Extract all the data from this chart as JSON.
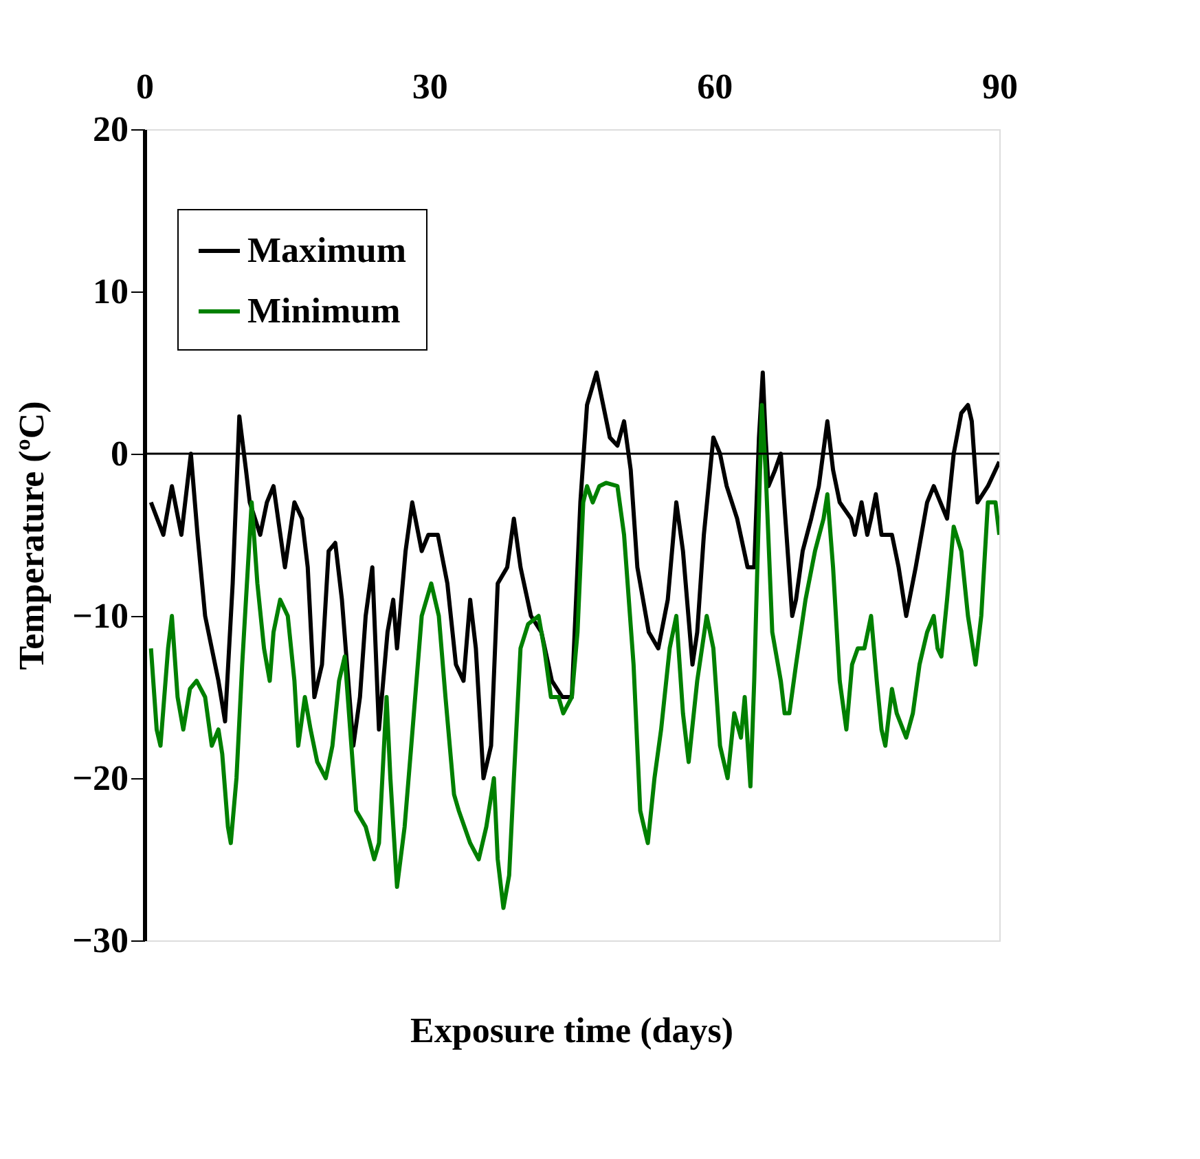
{
  "chart_data": {
    "type": "line",
    "xlabel": "Exposure time (days)",
    "ylabel": "Temperature (ºC)",
    "xlim": [
      0,
      90
    ],
    "xticks": [
      0,
      30,
      60,
      90
    ],
    "ylim": [
      -30,
      20
    ],
    "yticks": [
      -30,
      -20,
      -10,
      0,
      10,
      20
    ],
    "grid": false,
    "legend": "top left",
    "marker": "none",
    "line_style": "solid",
    "ref_lines": [
      {
        "axis": "y",
        "value": 0,
        "color": "#000000"
      }
    ],
    "series": [
      {
        "name": "Maximum",
        "color": "#000000",
        "x": [
          0.7,
          2.0,
          2.9,
          3.9,
          4.9,
          5.6,
          6.4,
          7.8,
          8.5,
          9.3,
          10.0,
          10.7,
          11.1,
          12.2,
          12.9,
          13.6,
          14.8,
          15.8,
          16.6,
          17.2,
          17.9,
          18.7,
          19.4,
          20.1,
          20.8,
          22.0,
          22.7,
          23.3,
          24.0,
          24.7,
          25.6,
          26.2,
          26.6,
          27.5,
          28.2,
          29.2,
          29.9,
          30.9,
          31.9,
          32.8,
          33.6,
          34.3,
          34.9,
          35.7,
          36.5,
          37.2,
          38.2,
          38.9,
          39.6,
          40.7,
          41.8,
          42.9,
          44.0,
          45.0,
          45.9,
          46.6,
          47.6,
          48.3,
          49.0,
          49.8,
          50.5,
          51.2,
          51.9,
          53.1,
          54.1,
          55.1,
          56.0,
          56.7,
          57.7,
          58.2,
          58.9,
          59.9,
          60.6,
          61.3,
          62.4,
          63.5,
          64.2,
          64.7,
          65.1,
          65.4,
          65.7,
          66.4,
          67.0,
          67.6,
          68.2,
          68.6,
          69.3,
          70.2,
          71.0,
          71.9,
          72.5,
          73.2,
          74.4,
          74.8,
          75.5,
          76.1,
          76.5,
          77.0,
          77.6,
          78.0,
          78.7,
          79.4,
          80.2,
          81.2,
          82.4,
          83.1,
          83.8,
          84.5,
          85.2,
          86.0,
          86.7,
          87.1,
          87.7,
          88.8,
          90.0
        ],
        "values": [
          -3,
          -5,
          -2,
          -5,
          0,
          -5,
          -10,
          -14,
          -16.5,
          -8,
          2.3,
          -1,
          -3,
          -5,
          -3,
          -2,
          -7,
          -3,
          -4,
          -7,
          -15,
          -13,
          -6,
          -5.5,
          -9,
          -18,
          -15,
          -10,
          -7,
          -17,
          -11,
          -9,
          -12,
          -6,
          -3,
          -6,
          -5,
          -5,
          -8,
          -13,
          -14,
          -9,
          -12,
          -20,
          -18,
          -8,
          -7,
          -4,
          -7,
          -10,
          -11,
          -14,
          -15,
          -15,
          -3,
          3,
          5,
          3,
          1,
          0.5,
          2,
          -1,
          -7,
          -11,
          -12,
          -9,
          -3,
          -6,
          -13,
          -11,
          -5,
          1,
          0,
          -2,
          -4,
          -7,
          -7,
          1,
          5,
          1,
          -2,
          -1,
          0,
          -5,
          -10,
          -9,
          -6,
          -4,
          -2,
          2,
          -1,
          -3,
          -4,
          -5,
          -3,
          -5,
          -4,
          -2.5,
          -5,
          -5,
          -5,
          -7,
          -10,
          -7,
          -3,
          -2,
          -3,
          -4,
          0,
          2.5,
          3,
          2,
          -3,
          -2,
          -0.5
        ]
      },
      {
        "name": "Minimum",
        "color": "#008000",
        "x": [
          0.7,
          1.3,
          1.7,
          2.5,
          2.9,
          3.5,
          4.1,
          4.8,
          5.5,
          6.4,
          7.1,
          7.8,
          8.2,
          8.8,
          9.1,
          9.7,
          10.3,
          10.9,
          11.3,
          11.9,
          12.6,
          13.2,
          13.6,
          14.3,
          15.1,
          15.8,
          16.2,
          16.9,
          17.5,
          18.2,
          19.1,
          19.8,
          20.5,
          21.1,
          22.3,
          23.3,
          24.2,
          24.7,
          25.5,
          25.9,
          26.6,
          27.4,
          28.1,
          29.2,
          30.2,
          31.0,
          31.7,
          32.6,
          33.1,
          34.3,
          35.2,
          36.0,
          36.8,
          37.2,
          37.8,
          38.4,
          38.9,
          39.6,
          40.4,
          41.5,
          42.1,
          42.8,
          43.6,
          44.1,
          45.0,
          45.6,
          46.2,
          46.6,
          47.2,
          47.9,
          48.6,
          49.8,
          50.5,
          51.5,
          52.2,
          53.0,
          53.7,
          54.4,
          55.3,
          56.0,
          56.7,
          57.3,
          58.2,
          59.2,
          59.9,
          60.6,
          61.4,
          62.1,
          62.8,
          63.2,
          63.8,
          64.2,
          65.0,
          65.4,
          66.1,
          67.0,
          67.4,
          67.9,
          68.6,
          69.6,
          70.6,
          71.5,
          71.9,
          72.5,
          73.2,
          73.9,
          74.5,
          75.1,
          75.8,
          76.5,
          77.1,
          77.6,
          78.0,
          78.7,
          79.2,
          80.2,
          80.9,
          81.6,
          82.4,
          83.1,
          83.5,
          83.9,
          84.5,
          85.2,
          86.0,
          86.7,
          87.5,
          88.1,
          88.8,
          89.6,
          90.0
        ],
        "values": [
          -12,
          -17,
          -18,
          -12,
          -10,
          -15,
          -17,
          -14.5,
          -14,
          -15,
          -18,
          -17,
          -18.5,
          -23,
          -24,
          -20,
          -13,
          -7,
          -3,
          -8,
          -12,
          -14,
          -11,
          -9,
          -10,
          -14,
          -18,
          -15,
          -17,
          -19,
          -20,
          -18,
          -14,
          -12.5,
          -22,
          -23,
          -25,
          -24,
          -15,
          -20,
          -26.7,
          -23,
          -18,
          -10,
          -8,
          -10,
          -15,
          -21,
          -22,
          -24,
          -25,
          -23,
          -20,
          -25,
          -28,
          -26,
          -20,
          -12,
          -10.5,
          -10,
          -12,
          -15,
          -15,
          -16,
          -15,
          -11,
          -3,
          -2,
          -3,
          -2,
          -1.8,
          -2,
          -5,
          -13,
          -22,
          -24,
          -20,
          -17,
          -12,
          -10,
          -16,
          -19,
          -14,
          -10,
          -12,
          -18,
          -20,
          -16,
          -17.5,
          -15,
          -20.5,
          -14,
          3,
          -1,
          -11,
          -14,
          -16,
          -16,
          -13,
          -9,
          -6,
          -4,
          -2.5,
          -7,
          -14,
          -17,
          -13,
          -12,
          -12,
          -10,
          -14,
          -17,
          -18,
          -14.5,
          -16,
          -17.5,
          -16,
          -13,
          -11,
          -10,
          -12,
          -12.5,
          -9,
          -4.5,
          -6,
          -10,
          -13,
          -10,
          -3,
          -3,
          -5
        ]
      }
    ]
  }
}
